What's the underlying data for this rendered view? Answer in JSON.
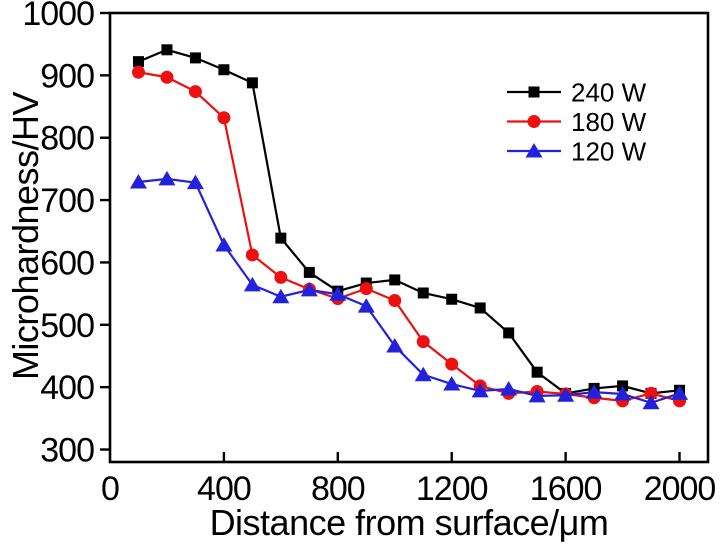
{
  "chart_data": {
    "type": "line",
    "title": "",
    "xlabel": "Distance from surface/μm",
    "ylabel": "Microhardness/HV",
    "x": [
      100,
      200,
      300,
      400,
      500,
      600,
      700,
      800,
      900,
      1000,
      1100,
      1200,
      1300,
      1400,
      1500,
      1600,
      1700,
      1800,
      1900,
      2000
    ],
    "series": [
      {
        "name": "240 W",
        "color": "#000000",
        "marker": "square",
        "values": [
          922,
          941,
          928,
          909,
          888,
          639,
          584,
          554,
          567,
          572,
          551,
          541,
          527,
          487,
          424,
          390,
          398,
          402,
          390,
          395
        ]
      },
      {
        "name": "180 W",
        "color": "#ee1010",
        "marker": "circle",
        "values": [
          905,
          897,
          874,
          832,
          612,
          576,
          557,
          542,
          558,
          539,
          473,
          437,
          402,
          390,
          393,
          389,
          383,
          378,
          390,
          378
        ]
      },
      {
        "name": "120 W",
        "color": "#2222dd",
        "marker": "triangle",
        "values": [
          729,
          734,
          728,
          628,
          564,
          545,
          556,
          549,
          530,
          466,
          420,
          405,
          394,
          397,
          386,
          387,
          392,
          389,
          375,
          390
        ]
      }
    ],
    "xlim": [
      0,
      2100
    ],
    "ylim": [
      280,
      1000
    ],
    "xticks": [
      0,
      400,
      800,
      1200,
      1600,
      2000
    ],
    "yticks": [
      300,
      400,
      500,
      600,
      700,
      800,
      900,
      1000
    ],
    "grid": false,
    "legend_position": "upper-right",
    "axis_color": "#000000"
  }
}
